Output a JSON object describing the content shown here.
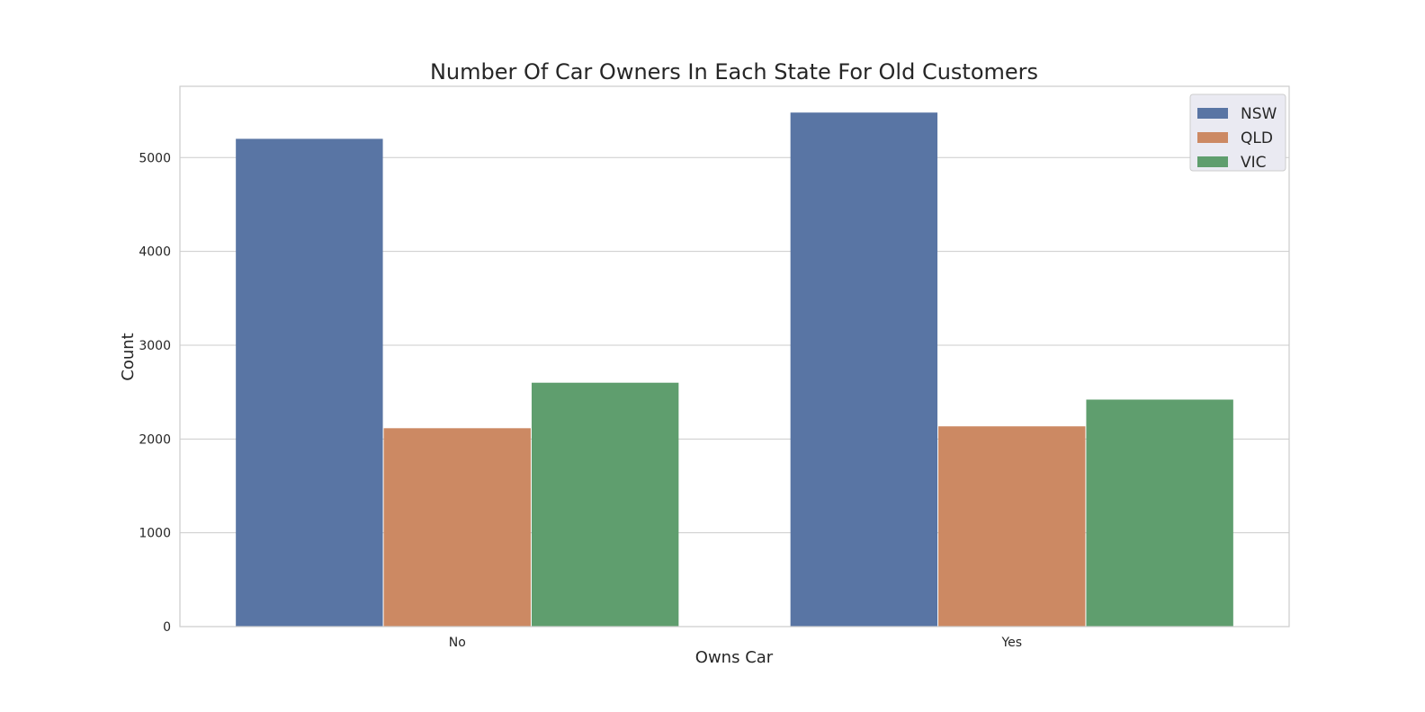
{
  "chart_data": {
    "type": "bar",
    "title": "Number Of Car Owners In Each State For Old Customers",
    "xlabel": "Owns Car",
    "ylabel": "Count",
    "categories": [
      "No",
      "Yes"
    ],
    "series": [
      {
        "name": "NSW",
        "values": [
          5200,
          5480
        ],
        "color": "#5975a4"
      },
      {
        "name": "QLD",
        "values": [
          2115,
          2135
        ],
        "color": "#cc8963"
      },
      {
        "name": "VIC",
        "values": [
          2600,
          2420
        ],
        "color": "#5f9e6e"
      }
    ],
    "ylim": [
      0,
      5760
    ],
    "yticks": [
      0,
      1000,
      2000,
      3000,
      4000,
      5000
    ],
    "grid": true,
    "legend_position": "top-right"
  }
}
